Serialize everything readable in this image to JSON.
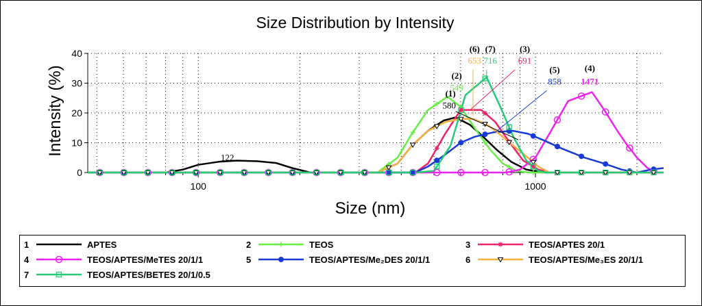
{
  "chart_data": {
    "type": "line",
    "title": "Size Distribution by Intensity",
    "xlabel": "Size (nm)",
    "ylabel": "Intensity (%)",
    "xscale": "log",
    "xlim": [
      47,
      2400
    ],
    "ylim": [
      0,
      40
    ],
    "yticks": [
      "0",
      "10",
      "20",
      "30",
      "40"
    ],
    "xticks": [
      {
        "value": 100,
        "label": "100"
      },
      {
        "value": 1000,
        "label": "1000"
      }
    ],
    "grid": "dotted",
    "legend_position": "bottom",
    "series": [
      {
        "id": "1",
        "name": "APTES",
        "color": "#000000",
        "marker": "none",
        "points": [
          [
            47,
            0
          ],
          [
            80,
            0
          ],
          [
            90,
            1
          ],
          [
            100,
            2.6
          ],
          [
            115,
            3.6
          ],
          [
            130,
            4
          ],
          [
            150,
            3.8
          ],
          [
            170,
            3.2
          ],
          [
            190,
            1.5
          ],
          [
            215,
            0
          ],
          [
            340,
            0
          ],
          [
            390,
            3
          ],
          [
            430,
            9
          ],
          [
            480,
            14
          ],
          [
            535,
            17.5
          ],
          [
            580,
            18.5
          ],
          [
            640,
            16
          ],
          [
            700,
            12
          ],
          [
            770,
            7.5
          ],
          [
            850,
            3.5
          ],
          [
            940,
            1
          ],
          [
            1050,
            0
          ],
          [
            2400,
            0
          ]
        ]
      },
      {
        "id": "2",
        "name": "TEOS",
        "color": "#66ee44",
        "marker": "plus",
        "points": [
          [
            47,
            0
          ],
          [
            340,
            0
          ],
          [
            390,
            5
          ],
          [
            430,
            13
          ],
          [
            480,
            21
          ],
          [
            549,
            25.5
          ],
          [
            600,
            22
          ],
          [
            660,
            15
          ],
          [
            730,
            8
          ],
          [
            800,
            3
          ],
          [
            880,
            0.5
          ],
          [
            960,
            0
          ],
          [
            2400,
            0
          ]
        ]
      },
      {
        "id": "3",
        "name": "TEOS/APTES 20/1",
        "color": "#ee2266",
        "marker": "star",
        "points": [
          [
            47,
            0
          ],
          [
            440,
            0
          ],
          [
            480,
            3
          ],
          [
            540,
            13
          ],
          [
            600,
            21
          ],
          [
            691,
            21
          ],
          [
            760,
            17
          ],
          [
            840,
            10
          ],
          [
            920,
            4
          ],
          [
            1020,
            1
          ],
          [
            1100,
            0
          ],
          [
            2400,
            0
          ]
        ]
      },
      {
        "id": "4",
        "name": "TEOS/APTES/MeTES 20/1/1",
        "color": "#ee22ee",
        "marker": "circle",
        "points": [
          [
            47,
            0
          ],
          [
            820,
            0
          ],
          [
            900,
            1
          ],
          [
            1000,
            5
          ],
          [
            1100,
            13
          ],
          [
            1250,
            24
          ],
          [
            1471,
            27
          ],
          [
            1600,
            21
          ],
          [
            1750,
            14
          ],
          [
            1850,
            10
          ],
          [
            2000,
            5
          ],
          [
            2150,
            1.5
          ],
          [
            2300,
            0
          ],
          [
            2400,
            0
          ]
        ]
      },
      {
        "id": "5",
        "name": "TEOS/APTES/Me2DES 20/1/1",
        "color": "#1a3ad6",
        "marker": "dot",
        "points": [
          [
            47,
            0
          ],
          [
            440,
            0
          ],
          [
            480,
            2
          ],
          [
            540,
            6
          ],
          [
            600,
            10
          ],
          [
            660,
            12
          ],
          [
            750,
            13.5
          ],
          [
            858,
            14
          ],
          [
            950,
            13
          ],
          [
            1050,
            11
          ],
          [
            1200,
            8
          ],
          [
            1400,
            5
          ],
          [
            1600,
            3
          ],
          [
            1800,
            1
          ],
          [
            2000,
            0
          ],
          [
            2200,
            1
          ],
          [
            2400,
            1.5
          ]
        ]
      },
      {
        "id": "6",
        "name": "TEOS/APTES/Me3ES 20/1/1",
        "color": "#f4b042",
        "marker": "triangle",
        "points": [
          [
            47,
            0
          ],
          [
            340,
            0
          ],
          [
            390,
            3
          ],
          [
            430,
            9
          ],
          [
            480,
            14
          ],
          [
            540,
            17
          ],
          [
            600,
            18
          ],
          [
            653,
            18
          ],
          [
            720,
            16
          ],
          [
            780,
            13
          ],
          [
            860,
            9
          ],
          [
            950,
            5
          ],
          [
            1020,
            2
          ],
          [
            1100,
            0
          ],
          [
            2400,
            0
          ]
        ]
      },
      {
        "id": "7",
        "name": "TEOS/APTES/BETES 20/1/0.5",
        "color": "#22cc77",
        "marker": "square",
        "points": [
          [
            47,
            0
          ],
          [
            440,
            0
          ],
          [
            500,
            0.5
          ],
          [
            560,
            9
          ],
          [
            620,
            26
          ],
          [
            716,
            32
          ],
          [
            780,
            23
          ],
          [
            860,
            12
          ],
          [
            940,
            4
          ],
          [
            1020,
            0.5
          ],
          [
            1080,
            0
          ],
          [
            2400,
            0
          ]
        ]
      }
    ],
    "annotations": [
      {
        "text": "122",
        "x": 122,
        "y": 4,
        "color": "#000000",
        "bold": false
      },
      {
        "text": "(1)",
        "x": 560,
        "y": 25.5,
        "color": "#000000",
        "bold": true
      },
      {
        "text": "580",
        "x": 555,
        "y": 21.5,
        "color": "#000000",
        "bold": false
      },
      {
        "text": "(2)",
        "x": 584,
        "y": 31.5,
        "color": "#000000",
        "bold": true
      },
      {
        "text": "549",
        "x": 584,
        "y": 27.5,
        "color": "#66ee44",
        "bold": false
      },
      {
        "text": "(6)",
        "x": 660,
        "y": 40.5,
        "color": "#000000",
        "bold": true
      },
      {
        "text": "653",
        "x": 660,
        "y": 36.5,
        "color": "#f4b042",
        "bold": false
      },
      {
        "text": "(7)",
        "x": 735,
        "y": 40.5,
        "color": "#000000",
        "bold": true
      },
      {
        "text": "716",
        "x": 735,
        "y": 36.5,
        "color": "#22cc77",
        "bold": false
      },
      {
        "text": "(3)",
        "x": 930,
        "y": 40.5,
        "color": "#000000",
        "bold": true
      },
      {
        "text": "691",
        "x": 930,
        "y": 36.5,
        "color": "#ee2266",
        "bold": false
      },
      {
        "text": "(5)",
        "x": 1140,
        "y": 33.5,
        "color": "#000000",
        "bold": true
      },
      {
        "text": "858",
        "x": 1140,
        "y": 29.5,
        "color": "#1a3ad6",
        "bold": false
      },
      {
        "text": "(4)",
        "x": 1450,
        "y": 34,
        "color": "#000000",
        "bold": true
      },
      {
        "text": "1471",
        "x": 1450,
        "y": 29.5,
        "color": "#ee22ee",
        "bold": true
      }
    ],
    "leader_lines": [
      {
        "color": "#000000",
        "from": [
          580,
          20.5
        ],
        "to": [
          890,
          11
        ]
      },
      {
        "color": "#66ee44",
        "from": [
          549,
          25.5
        ],
        "to": [
          549,
          25.5
        ]
      },
      {
        "color": "#f4b042",
        "from": [
          653,
          34.5
        ],
        "to": [
          653,
          19
        ]
      },
      {
        "color": "#22cc77",
        "from": [
          716,
          34.5
        ],
        "to": [
          716,
          32
        ]
      },
      {
        "color": "#ee2266",
        "from": [
          870,
          34.5
        ],
        "to": [
          640,
          21
        ]
      },
      {
        "color": "#1a3ad6",
        "from": [
          1080,
          27.5
        ],
        "to": [
          760,
          13.5
        ]
      }
    ]
  },
  "legend": {
    "items": [
      {
        "num": "1",
        "label": "APTES",
        "color": "#000000",
        "marker": "none"
      },
      {
        "num": "2",
        "label": "TEOS",
        "color": "#66ee44",
        "marker": "plus"
      },
      {
        "num": "3",
        "label": "TEOS/APTES 20/1",
        "color": "#ee2266",
        "marker": "star"
      },
      {
        "num": "4",
        "label": "TEOS/APTES/MeTES 20/1/1",
        "color": "#ee22ee",
        "marker": "circle"
      },
      {
        "num": "5",
        "label": "TEOS/APTES/Me₂DES 20/1/1",
        "color": "#1a3ad6",
        "marker": "dot"
      },
      {
        "num": "6",
        "label": "TEOS/APTES/Me₃ES 20/1/1",
        "color": "#f4b042",
        "marker": "triangle"
      },
      {
        "num": "7",
        "label": "TEOS/APTES/BETES 20/1/0.5",
        "color": "#22cc77",
        "marker": "square"
      }
    ]
  }
}
